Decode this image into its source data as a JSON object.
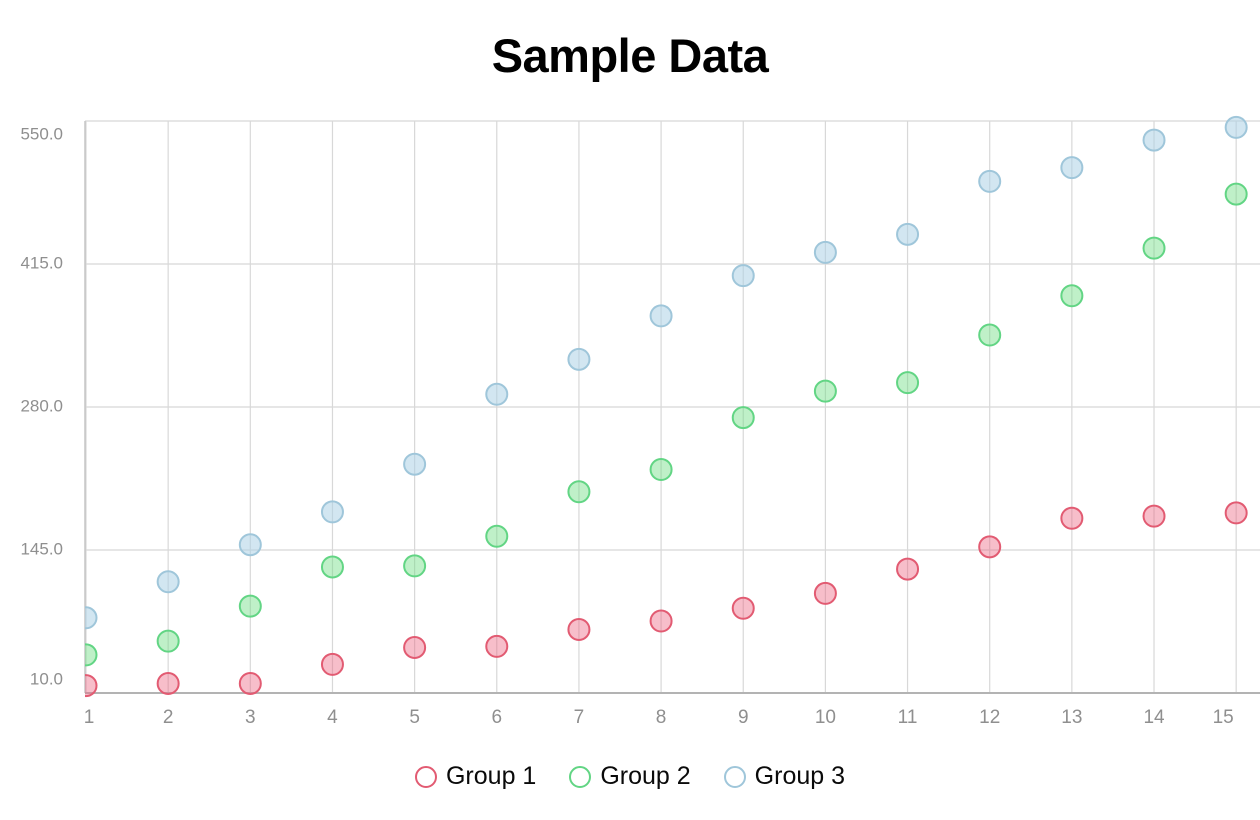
{
  "chart_data": {
    "type": "scatter",
    "title": "Sample Data",
    "x": [
      1,
      2,
      3,
      4,
      5,
      6,
      7,
      8,
      9,
      10,
      11,
      12,
      13,
      14,
      15
    ],
    "x_tick_labels": [
      "1",
      "2",
      "3",
      "4",
      "5",
      "6",
      "7",
      "8",
      "9",
      "10",
      "11",
      "12",
      "13",
      "14",
      "15"
    ],
    "y_tick_values": [
      10,
      145,
      280,
      415,
      550
    ],
    "y_tick_labels": [
      "10.0",
      "145.0",
      "280.0",
      "415.0",
      "550.0"
    ],
    "xlim": [
      1,
      15
    ],
    "ylim": [
      10,
      550
    ],
    "grid": true,
    "legend_position": "bottom",
    "marker": "circle",
    "series": [
      {
        "name": "Group 1",
        "stroke_color": "#e25b72",
        "fill_color": "rgba(236,101,128,0.42)",
        "values": [
          17,
          19,
          19,
          37,
          53,
          54,
          70,
          78,
          90,
          104,
          127,
          148,
          175,
          177,
          180
        ]
      },
      {
        "name": "Group 2",
        "stroke_color": "#62d584",
        "fill_color": "rgba(112,221,132,0.45)",
        "values": [
          46,
          59,
          92,
          129,
          130,
          158,
          200,
          221,
          270,
          295,
          303,
          348,
          385,
          430,
          481
        ]
      },
      {
        "name": "Group 3",
        "stroke_color": "#9fc6da",
        "fill_color": "rgba(173,209,229,0.55)",
        "values": [
          81,
          115,
          150,
          181,
          226,
          292,
          325,
          366,
          404,
          426,
          443,
          493,
          506,
          532,
          544
        ]
      }
    ],
    "colors": {
      "grid": "#d8d8d8",
      "axis": "#b3b3b3",
      "left_border": "#c6c6c6",
      "tick_labels": "#8f8f8f",
      "title": "#000000",
      "legend_text": "#0a0a0a"
    }
  }
}
